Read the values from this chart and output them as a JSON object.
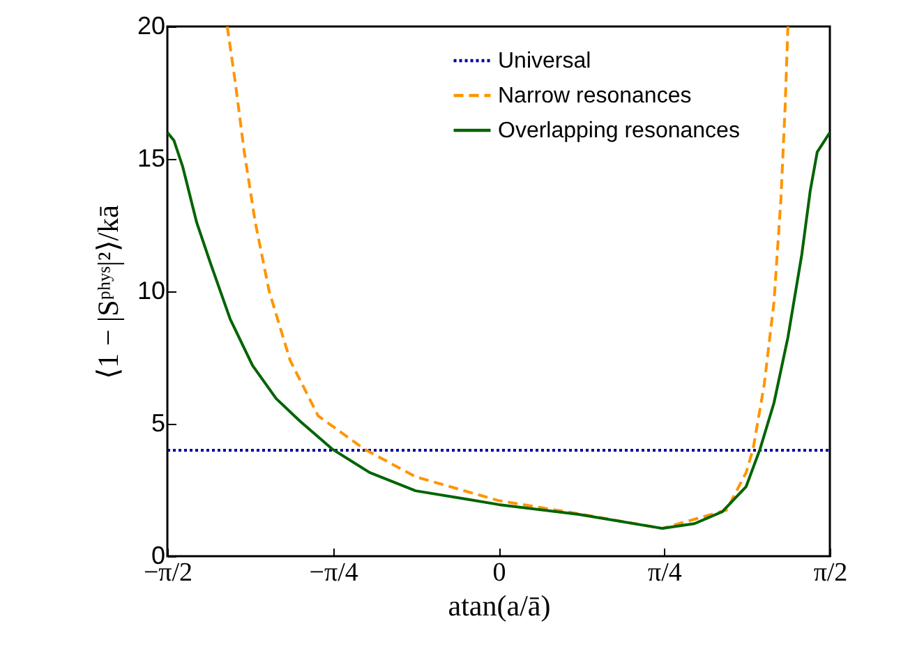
{
  "chart_data": {
    "type": "line",
    "xlabel": "atan(a/ā)",
    "ylabel": "⟨1 − |Sᵖʰʸˢ|²⟩/kā",
    "xlim": [
      -1.571,
      1.571
    ],
    "ylim": [
      0,
      20
    ],
    "xticks": [
      {
        "value": -1.571,
        "label": "−π/2"
      },
      {
        "value": -0.785,
        "label": "−π/4"
      },
      {
        "value": 0,
        "label": "0"
      },
      {
        "value": 0.785,
        "label": "π/4"
      },
      {
        "value": 1.571,
        "label": "π/2"
      }
    ],
    "yticks": [
      0,
      5,
      10,
      15,
      20
    ],
    "grid": false,
    "legend": "top right",
    "marker": "none",
    "series": [
      {
        "name": "Universal",
        "color": "#0000a0",
        "line_style": "dotted",
        "x": [
          -1.571,
          1.571
        ],
        "values": [
          4,
          4
        ]
      },
      {
        "name": "Narrow resonances",
        "color": "#ff9400",
        "line_style": "dashed",
        "x": [
          -1.287,
          -1.249,
          -1.207,
          -1.154,
          -1.088,
          -0.989,
          -0.856,
          -0.638,
          -0.394,
          0,
          0.38,
          0.777,
          1.081,
          1.174,
          1.207,
          1.26,
          1.306,
          1.339,
          1.359,
          1.372
        ],
        "values": [
          20,
          17.9,
          15.3,
          12.6,
          10,
          7.4,
          5.3,
          4.05,
          3.0,
          2.1,
          1.6,
          1.05,
          1.74,
          3.16,
          4.05,
          6.5,
          9.6,
          13.5,
          17,
          20
        ]
      },
      {
        "name": "Overlapping resonances",
        "color": "#006400",
        "line_style": "solid",
        "x": [
          -1.571,
          -1.54,
          -1.498,
          -1.432,
          -1.366,
          -1.273,
          -1.167,
          -1.055,
          -0.942,
          -0.79,
          -0.612,
          -0.394,
          -0.15,
          0,
          0.38,
          0.777,
          0.929,
          1.061,
          1.174,
          1.24,
          1.306,
          1.372,
          1.438,
          1.478,
          1.511,
          1.571
        ],
        "values": [
          16,
          15.7,
          14.7,
          12.6,
          11.05,
          8.95,
          7.2,
          5.95,
          5.1,
          4.05,
          3.16,
          2.47,
          2.15,
          1.95,
          1.58,
          1.05,
          1.23,
          1.68,
          2.63,
          4.05,
          5.79,
          8.26,
          11.4,
          13.8,
          15.26,
          16
        ]
      }
    ]
  }
}
